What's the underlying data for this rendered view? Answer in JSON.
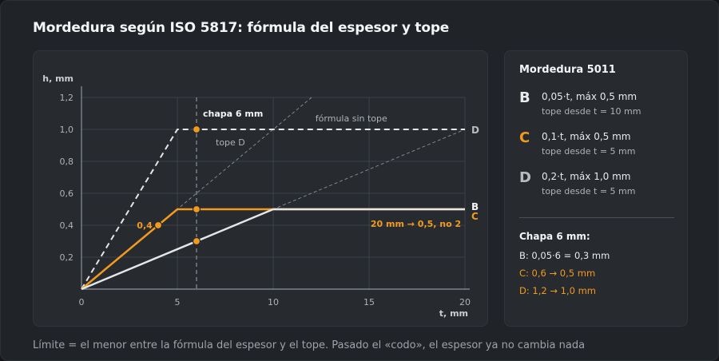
{
  "title": "Mordedura según ISO 5817: fórmula del espesor y tope",
  "colors": {
    "orange": "#f29a1f",
    "white_line": "#e4e6e8",
    "grid": "#3a4046",
    "muted": "#aeb3b8"
  },
  "chart_data": {
    "type": "line",
    "xlabel": "t, mm",
    "ylabel": "h, mm",
    "xlim": [
      0,
      20
    ],
    "ylim": [
      0,
      1.2
    ],
    "xticks": [
      0,
      5,
      10,
      15,
      20
    ],
    "yticks": [
      0.2,
      0.4,
      0.6,
      0.8,
      1.0,
      1.2
    ],
    "ytick_labels": [
      "0,2",
      "0,4",
      "0,6",
      "0,8",
      "1,0",
      "1,2"
    ],
    "xtick_labels": [
      "0",
      "5",
      "10",
      "15",
      "20"
    ],
    "grid": true,
    "series": [
      {
        "name": "D",
        "style": "dashed",
        "color": "#e4e6e8",
        "points": [
          [
            0,
            0
          ],
          [
            5,
            1.0
          ],
          [
            20,
            1.0
          ]
        ]
      },
      {
        "name": "C",
        "style": "solid",
        "color": "#f29a1f",
        "points": [
          [
            0,
            0
          ],
          [
            5,
            0.5
          ],
          [
            20,
            0.5
          ]
        ]
      },
      {
        "name": "B",
        "style": "solid",
        "color": "#e4e6e8",
        "points": [
          [
            0,
            0
          ],
          [
            10,
            0.5
          ],
          [
            20,
            0.5
          ]
        ]
      }
    ],
    "guides": [
      {
        "style": "thin-dashed",
        "points": [
          [
            0,
            0
          ],
          [
            20,
            1.0
          ]
        ]
      },
      {
        "style": "thin-dashed",
        "points": [
          [
            0,
            0
          ],
          [
            12,
            1.2
          ]
        ]
      }
    ],
    "vline": {
      "x": 6,
      "label": "chapa 6 mm"
    },
    "markers": [
      {
        "x": 6,
        "y": 1.0,
        "color": "#f29a1f"
      },
      {
        "x": 6,
        "y": 0.5,
        "color": "#f29a1f"
      },
      {
        "x": 6,
        "y": 0.3,
        "color": "#f29a1f"
      },
      {
        "x": 4,
        "y": 0.4,
        "color": "#f29a1f"
      }
    ],
    "annotations": {
      "formula_no_cap": "fórmula sin tope",
      "cap_d": "tope D",
      "point_04": "0,4",
      "note_20mm": "20 mm → 0,5, no 2"
    },
    "end_labels": {
      "D": "D",
      "B": "B",
      "C": "C"
    }
  },
  "side": {
    "title": "Mordedura 5011",
    "items": [
      {
        "letter": "B",
        "main": "0,05·t, máx 0,5 mm",
        "sub": "tope desde t = 10 mm"
      },
      {
        "letter": "C",
        "main": "0,1·t, máx 0,5 mm",
        "sub": "tope desde t = 5 mm"
      },
      {
        "letter": "D",
        "main": "0,2·t, máx 1,0 mm",
        "sub": "tope desde t = 5 mm"
      }
    ],
    "sheet_title": "Chapa 6 mm:",
    "sheet_lines": [
      "B: 0,05·6 = 0,3 mm",
      "C: 0,6 → 0,5 mm",
      "D: 1,2 → 1,0 mm"
    ]
  },
  "footer": "Límite = el menor entre la fórmula del espesor y el tope. Pasado el «codo», el espesor ya no cambia nada"
}
